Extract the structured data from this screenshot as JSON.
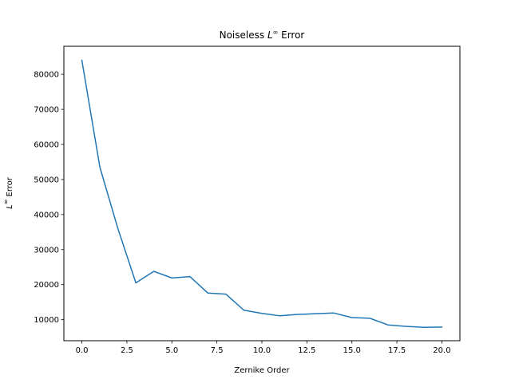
{
  "chart_data": {
    "type": "line",
    "title": "Noiseless L∞ Error",
    "title_parts": {
      "prefix": "Noiseless ",
      "symbol": "L",
      "sup": "∞",
      "suffix": " Error"
    },
    "xlabel": "Zernike Order",
    "ylabel": "L∞ Error",
    "ylabel_parts": {
      "symbol": "L",
      "sup": "∞",
      "suffix": " Error"
    },
    "xlim": [
      -1.0,
      21.0
    ],
    "ylim": [
      4000,
      88000
    ],
    "x_ticks": [
      0.0,
      2.5,
      5.0,
      7.5,
      10.0,
      12.5,
      15.0,
      17.5,
      20.0
    ],
    "x_tick_labels": [
      "0.0",
      "2.5",
      "5.0",
      "7.5",
      "10.0",
      "12.5",
      "15.0",
      "17.5",
      "20.0"
    ],
    "y_ticks": [
      10000,
      20000,
      30000,
      40000,
      50000,
      60000,
      70000,
      80000
    ],
    "y_tick_labels": [
      "10000",
      "20000",
      "30000",
      "40000",
      "50000",
      "60000",
      "70000",
      "80000"
    ],
    "grid": false,
    "line_color": "#1f77b4",
    "series": [
      {
        "x": [
          0,
          1,
          2,
          3,
          4,
          5,
          6,
          7,
          8,
          9,
          10,
          11,
          12,
          13,
          14,
          15,
          16,
          17,
          18,
          19,
          20
        ],
        "values": [
          84000,
          53500,
          36000,
          20500,
          23800,
          21900,
          22300,
          17600,
          17300,
          12700,
          11800,
          11100,
          11500,
          11700,
          11900,
          10600,
          10400,
          8500,
          8100,
          7800,
          7900
        ]
      }
    ]
  }
}
